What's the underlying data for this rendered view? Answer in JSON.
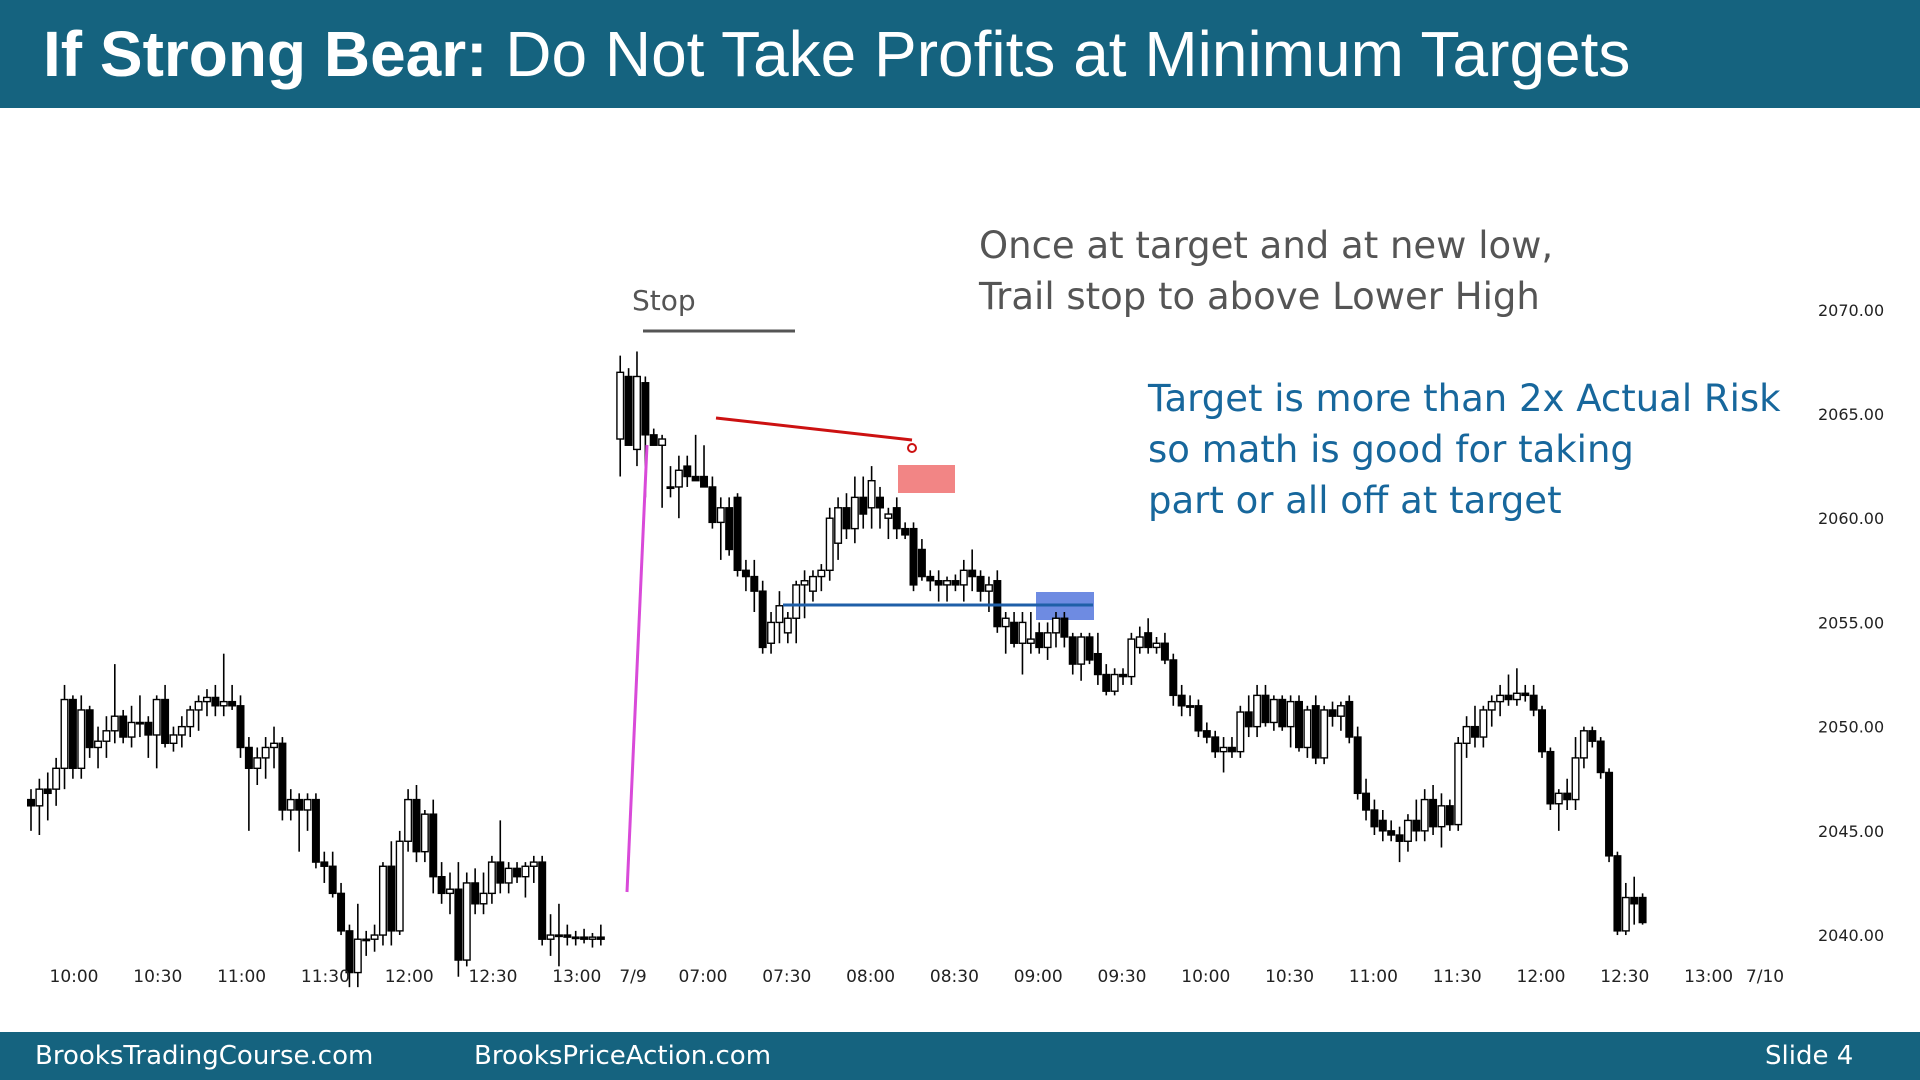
{
  "slide": {
    "title_bold": "If Strong Bear:",
    "title_rest": " Do Not Take Profits at Minimum Targets",
    "footer_left": "BrooksTradingCourse.com",
    "footer_middle": "BrooksPriceAction.com",
    "footer_right": "Slide  4"
  },
  "annotations": {
    "stop_label": "Stop",
    "trail_line1": "Once at target and at new low,",
    "trail_line2": "Trail stop to above Lower High",
    "target_line1": "Target is more than 2x Actual Risk",
    "target_line2": "so math is good for taking",
    "target_line3": "part or all off at target"
  },
  "colors": {
    "header": "#15637f",
    "bull_body": "#ffffff",
    "bear_body": "#000000",
    "gap_line": "#d94ad9",
    "lower_high_line": "#cc1111",
    "support_line": "#1f5fa8",
    "red_box": "#f07070",
    "blue_box": "#5577dd",
    "blue_text": "#17679c"
  },
  "chart_data": {
    "type": "candlestick",
    "title": "",
    "ylim": [
      2036.5,
      2074.5
    ],
    "yticks": [
      "2040.00",
      "2045.00",
      "2050.00",
      "2055.00",
      "2060.00",
      "2065.00",
      "2070.00"
    ],
    "x_labels": [
      "10:00",
      "10:30",
      "11:00",
      "11:30",
      "12:00",
      "12:30",
      "13:00",
      "7/9",
      "07:00",
      "07:30",
      "08:00",
      "08:30",
      "09:00",
      "09:30",
      "10:00",
      "10:30",
      "11:00",
      "11:30",
      "12:00",
      "12:30",
      "13:00",
      "7/10"
    ],
    "session_break_after_bar": 68,
    "candles": [
      [
        2046.5,
        2047.0,
        2045.0,
        2046.2
      ],
      [
        2046.2,
        2047.5,
        2044.8,
        2047.0
      ],
      [
        2047.0,
        2047.8,
        2045.5,
        2046.8
      ],
      [
        2047.0,
        2048.5,
        2046.2,
        2048.0
      ],
      [
        2048.0,
        2052.0,
        2047.0,
        2051.3
      ],
      [
        2051.3,
        2051.5,
        2047.5,
        2048.0
      ],
      [
        2048.0,
        2051.5,
        2047.5,
        2050.8
      ],
      [
        2050.8,
        2051.0,
        2048.5,
        2049.0
      ],
      [
        2049.0,
        2050.0,
        2048.0,
        2049.3
      ],
      [
        2049.3,
        2050.5,
        2048.5,
        2049.8
      ],
      [
        2049.8,
        2053.0,
        2049.2,
        2050.5
      ],
      [
        2050.5,
        2050.8,
        2049.2,
        2049.5
      ],
      [
        2049.5,
        2051.0,
        2049.0,
        2050.2
      ],
      [
        2050.2,
        2051.5,
        2049.5,
        2050.2
      ],
      [
        2050.2,
        2050.5,
        2048.5,
        2049.6
      ],
      [
        2049.6,
        2051.5,
        2048.0,
        2051.3
      ],
      [
        2051.3,
        2052.0,
        2049.0,
        2049.2
      ],
      [
        2049.2,
        2050.0,
        2048.8,
        2049.6
      ],
      [
        2049.6,
        2050.5,
        2049.0,
        2050.0
      ],
      [
        2050.0,
        2051.0,
        2049.5,
        2050.8
      ],
      [
        2050.8,
        2051.5,
        2049.8,
        2051.2
      ],
      [
        2051.2,
        2051.8,
        2050.5,
        2051.4
      ],
      [
        2051.4,
        2052.0,
        2050.5,
        2051.0
      ],
      [
        2051.0,
        2053.5,
        2050.5,
        2051.2
      ],
      [
        2051.2,
        2052.0,
        2050.8,
        2051.0
      ],
      [
        2051.0,
        2051.5,
        2048.5,
        2049.0
      ],
      [
        2049.0,
        2049.5,
        2045.0,
        2048.0
      ],
      [
        2048.0,
        2049.0,
        2047.2,
        2048.5
      ],
      [
        2048.5,
        2049.5,
        2047.5,
        2049.0
      ],
      [
        2049.0,
        2050.0,
        2048.0,
        2049.2
      ],
      [
        2049.2,
        2049.5,
        2045.5,
        2046.0
      ],
      [
        2046.0,
        2047.0,
        2045.5,
        2046.5
      ],
      [
        2046.5,
        2046.8,
        2044.0,
        2046.0
      ],
      [
        2046.0,
        2046.8,
        2045.0,
        2046.5
      ],
      [
        2046.5,
        2046.8,
        2043.2,
        2043.5
      ],
      [
        2043.5,
        2044.0,
        2042.5,
        2043.3
      ],
      [
        2043.3,
        2044.0,
        2041.8,
        2042.0
      ],
      [
        2042.0,
        2042.5,
        2040.0,
        2040.2
      ],
      [
        2040.2,
        2040.5,
        2037.5,
        2038.2
      ],
      [
        2038.2,
        2041.5,
        2037.5,
        2039.8
      ],
      [
        2039.8,
        2040.2,
        2039.0,
        2039.8
      ],
      [
        2039.8,
        2040.5,
        2039.2,
        2040.0
      ],
      [
        2040.0,
        2043.5,
        2039.5,
        2043.3
      ],
      [
        2043.3,
        2044.5,
        2039.5,
        2040.2
      ],
      [
        2040.2,
        2045.0,
        2040.0,
        2044.5
      ],
      [
        2044.5,
        2047.0,
        2044.0,
        2046.5
      ],
      [
        2046.5,
        2047.2,
        2043.5,
        2044.0
      ],
      [
        2044.0,
        2046.0,
        2043.5,
        2045.8
      ],
      [
        2045.8,
        2046.5,
        2042.0,
        2042.8
      ],
      [
        2042.8,
        2043.5,
        2041.5,
        2042.0
      ],
      [
        2042.0,
        2043.0,
        2041.0,
        2042.2
      ],
      [
        2042.2,
        2043.5,
        2038.0,
        2038.8
      ],
      [
        2038.8,
        2043.0,
        2038.5,
        2042.5
      ],
      [
        2042.5,
        2043.2,
        2041.0,
        2041.5
      ],
      [
        2041.5,
        2043.0,
        2041.0,
        2042.0
      ],
      [
        2042.0,
        2043.8,
        2041.5,
        2043.5
      ],
      [
        2043.5,
        2045.5,
        2042.0,
        2042.5
      ],
      [
        2042.5,
        2043.5,
        2042.0,
        2043.2
      ],
      [
        2043.2,
        2043.5,
        2042.5,
        2042.8
      ],
      [
        2042.8,
        2043.5,
        2041.8,
        2043.3
      ],
      [
        2043.3,
        2043.8,
        2042.5,
        2043.5
      ],
      [
        2043.5,
        2043.8,
        2039.5,
        2039.8
      ],
      [
        2039.8,
        2041.0,
        2039.0,
        2040.0
      ],
      [
        2040.0,
        2041.5,
        2038.5,
        2040.0
      ],
      [
        2040.0,
        2040.5,
        2039.5,
        2039.9
      ],
      [
        2039.9,
        2040.2,
        2039.5,
        2039.9
      ],
      [
        2039.9,
        2040.3,
        2039.6,
        2039.8
      ],
      [
        2039.8,
        2040.1,
        2039.4,
        2039.9
      ],
      [
        2039.9,
        2040.5,
        2039.5,
        2039.8
      ],
      [
        2063.8,
        2067.8,
        2062.0,
        2067.0
      ],
      [
        2066.8,
        2067.2,
        2063.5,
        2063.5
      ],
      [
        2063.3,
        2068.0,
        2062.5,
        2066.8
      ],
      [
        2066.5,
        2066.8,
        2061.0,
        2064.0
      ],
      [
        2064.0,
        2064.3,
        2063.5,
        2063.5
      ],
      [
        2063.5,
        2064.0,
        2060.5,
        2063.8
      ],
      [
        2061.5,
        2062.5,
        2061.0,
        2061.5
      ],
      [
        2061.5,
        2063.0,
        2060.0,
        2062.3
      ],
      [
        2062.5,
        2063.0,
        2061.5,
        2062.0
      ],
      [
        2062.0,
        2064.0,
        2061.8,
        2061.8
      ],
      [
        2062.0,
        2063.5,
        2061.5,
        2061.5
      ],
      [
        2061.5,
        2062.0,
        2059.5,
        2059.8
      ],
      [
        2059.8,
        2061.0,
        2058.0,
        2060.5
      ],
      [
        2060.5,
        2061.0,
        2058.2,
        2058.5
      ],
      [
        2061.0,
        2061.2,
        2057.2,
        2057.5
      ],
      [
        2057.5,
        2058.0,
        2056.5,
        2057.2
      ],
      [
        2057.2,
        2058.0,
        2055.5,
        2056.5
      ],
      [
        2056.5,
        2057.0,
        2053.5,
        2053.8
      ],
      [
        2054.0,
        2055.5,
        2053.5,
        2055.0
      ],
      [
        2055.0,
        2056.5,
        2054.0,
        2055.8
      ],
      [
        2054.5,
        2055.5,
        2054.0,
        2055.2
      ],
      [
        2055.2,
        2057.0,
        2054.0,
        2056.8
      ],
      [
        2056.8,
        2057.5,
        2055.2,
        2057.0
      ],
      [
        2056.5,
        2057.5,
        2056.0,
        2057.2
      ],
      [
        2057.2,
        2057.8,
        2056.5,
        2057.5
      ],
      [
        2057.5,
        2060.5,
        2057.0,
        2060.0
      ],
      [
        2058.8,
        2061.0,
        2058.0,
        2060.5
      ],
      [
        2060.5,
        2061.2,
        2059.0,
        2059.5
      ],
      [
        2059.5,
        2062.0,
        2058.8,
        2061.0
      ],
      [
        2061.0,
        2062.0,
        2059.5,
        2060.2
      ],
      [
        2060.5,
        2062.5,
        2059.5,
        2061.8
      ],
      [
        2061.0,
        2061.5,
        2059.5,
        2060.5
      ],
      [
        2060.0,
        2060.5,
        2059.0,
        2060.2
      ],
      [
        2060.5,
        2061.0,
        2059.0,
        2059.5
      ],
      [
        2059.5,
        2059.8,
        2059.0,
        2059.2
      ],
      [
        2059.5,
        2059.8,
        2056.5,
        2056.8
      ],
      [
        2058.5,
        2059.0,
        2057.0,
        2057.2
      ],
      [
        2057.2,
        2057.5,
        2056.5,
        2057.0
      ],
      [
        2057.0,
        2057.5,
        2056.0,
        2056.8
      ],
      [
        2056.8,
        2057.2,
        2056.0,
        2057.0
      ],
      [
        2057.0,
        2057.3,
        2056.5,
        2056.8
      ],
      [
        2056.8,
        2058.0,
        2056.0,
        2057.5
      ],
      [
        2057.5,
        2058.5,
        2056.5,
        2057.2
      ],
      [
        2057.2,
        2057.5,
        2056.0,
        2056.5
      ],
      [
        2056.5,
        2057.2,
        2055.5,
        2056.8
      ],
      [
        2057.0,
        2057.5,
        2054.5,
        2054.8
      ],
      [
        2054.8,
        2055.5,
        2053.5,
        2055.2
      ],
      [
        2055.0,
        2055.5,
        2053.8,
        2054.0
      ],
      [
        2054.0,
        2055.5,
        2052.5,
        2055.0
      ],
      [
        2054.0,
        2055.5,
        2053.5,
        2054.2
      ],
      [
        2054.5,
        2055.0,
        2053.5,
        2053.8
      ],
      [
        2053.8,
        2055.0,
        2053.2,
        2054.5
      ],
      [
        2054.5,
        2055.5,
        2053.8,
        2055.2
      ],
      [
        2055.2,
        2055.5,
        2053.8,
        2054.3
      ],
      [
        2054.3,
        2054.5,
        2052.5,
        2053.0
      ],
      [
        2053.0,
        2054.5,
        2052.2,
        2054.3
      ],
      [
        2054.3,
        2054.5,
        2053.0,
        2053.2
      ],
      [
        2053.5,
        2054.5,
        2052.0,
        2052.5
      ],
      [
        2052.5,
        2053.0,
        2051.5,
        2051.7
      ],
      [
        2051.7,
        2052.8,
        2051.5,
        2052.5
      ],
      [
        2052.5,
        2052.8,
        2052.0,
        2052.4
      ],
      [
        2052.4,
        2054.5,
        2052.0,
        2054.2
      ],
      [
        2053.8,
        2054.8,
        2053.5,
        2054.3
      ],
      [
        2054.5,
        2055.2,
        2053.5,
        2053.8
      ],
      [
        2053.8,
        2054.3,
        2053.5,
        2054.0
      ],
      [
        2054.0,
        2054.5,
        2053.0,
        2053.2
      ],
      [
        2053.2,
        2053.5,
        2051.0,
        2051.5
      ],
      [
        2051.5,
        2052.0,
        2050.5,
        2051.0
      ],
      [
        2051.0,
        2051.5,
        2050.5,
        2051.0
      ],
      [
        2051.0,
        2051.3,
        2049.5,
        2049.8
      ],
      [
        2049.8,
        2050.2,
        2049.2,
        2049.5
      ],
      [
        2049.5,
        2049.8,
        2048.5,
        2048.8
      ],
      [
        2048.8,
        2049.5,
        2047.8,
        2049.0
      ],
      [
        2049.0,
        2049.5,
        2048.5,
        2048.8
      ],
      [
        2048.8,
        2051.0,
        2048.5,
        2050.7
      ],
      [
        2050.7,
        2051.5,
        2049.5,
        2050.0
      ],
      [
        2050.0,
        2052.0,
        2049.5,
        2051.5
      ],
      [
        2051.5,
        2052.0,
        2050.0,
        2050.2
      ],
      [
        2050.2,
        2051.5,
        2049.8,
        2051.3
      ],
      [
        2051.3,
        2051.5,
        2049.8,
        2050.0
      ],
      [
        2050.0,
        2051.5,
        2049.0,
        2051.2
      ],
      [
        2051.2,
        2051.5,
        2048.8,
        2049.0
      ],
      [
        2049.0,
        2051.0,
        2048.5,
        2050.8
      ],
      [
        2051.0,
        2051.5,
        2048.2,
        2048.5
      ],
      [
        2048.5,
        2051.0,
        2048.2,
        2050.8
      ],
      [
        2050.8,
        2051.2,
        2050.0,
        2050.5
      ],
      [
        2050.5,
        2051.2,
        2049.8,
        2051.0
      ],
      [
        2051.2,
        2051.5,
        2049.2,
        2049.5
      ],
      [
        2049.5,
        2050.0,
        2046.5,
        2046.8
      ],
      [
        2046.8,
        2047.5,
        2045.5,
        2046.0
      ],
      [
        2046.0,
        2046.5,
        2044.8,
        2045.2
      ],
      [
        2045.5,
        2046.0,
        2044.5,
        2045.0
      ],
      [
        2045.0,
        2045.5,
        2044.5,
        2044.8
      ],
      [
        2044.8,
        2045.2,
        2043.5,
        2044.5
      ],
      [
        2044.5,
        2045.8,
        2044.0,
        2045.5
      ],
      [
        2045.5,
        2046.5,
        2044.5,
        2045.0
      ],
      [
        2045.0,
        2047.0,
        2044.5,
        2046.5
      ],
      [
        2046.5,
        2047.2,
        2044.8,
        2045.2
      ],
      [
        2045.2,
        2046.8,
        2044.2,
        2046.2
      ],
      [
        2046.2,
        2046.5,
        2045.0,
        2045.3
      ],
      [
        2045.3,
        2049.5,
        2045.0,
        2049.2
      ],
      [
        2049.2,
        2050.5,
        2048.5,
        2050.0
      ],
      [
        2050.0,
        2051.0,
        2049.0,
        2049.5
      ],
      [
        2049.5,
        2051.0,
        2049.0,
        2050.8
      ],
      [
        2050.8,
        2051.5,
        2050.0,
        2051.2
      ],
      [
        2051.2,
        2052.0,
        2050.5,
        2051.5
      ],
      [
        2051.5,
        2052.5,
        2051.0,
        2051.3
      ],
      [
        2051.3,
        2052.8,
        2051.0,
        2051.6
      ],
      [
        2051.6,
        2052.0,
        2051.2,
        2051.5
      ],
      [
        2051.5,
        2052.0,
        2050.5,
        2050.8
      ],
      [
        2050.8,
        2051.0,
        2048.5,
        2048.8
      ],
      [
        2048.8,
        2049.0,
        2046.0,
        2046.3
      ],
      [
        2046.3,
        2047.0,
        2045.0,
        2046.8
      ],
      [
        2046.8,
        2047.5,
        2046.0,
        2046.5
      ],
      [
        2046.5,
        2049.5,
        2046.0,
        2048.5
      ],
      [
        2048.5,
        2050.0,
        2048.0,
        2049.8
      ],
      [
        2049.8,
        2050.0,
        2049.0,
        2049.3
      ],
      [
        2049.3,
        2049.5,
        2047.5,
        2047.8
      ],
      [
        2047.8,
        2048.0,
        2043.5,
        2043.8
      ],
      [
        2043.8,
        2044.0,
        2040.0,
        2040.2
      ],
      [
        2040.2,
        2042.5,
        2040.0,
        2041.8
      ],
      [
        2041.8,
        2042.8,
        2040.5,
        2041.5
      ],
      [
        2041.8,
        2042.0,
        2040.5,
        2040.6
      ]
    ]
  }
}
